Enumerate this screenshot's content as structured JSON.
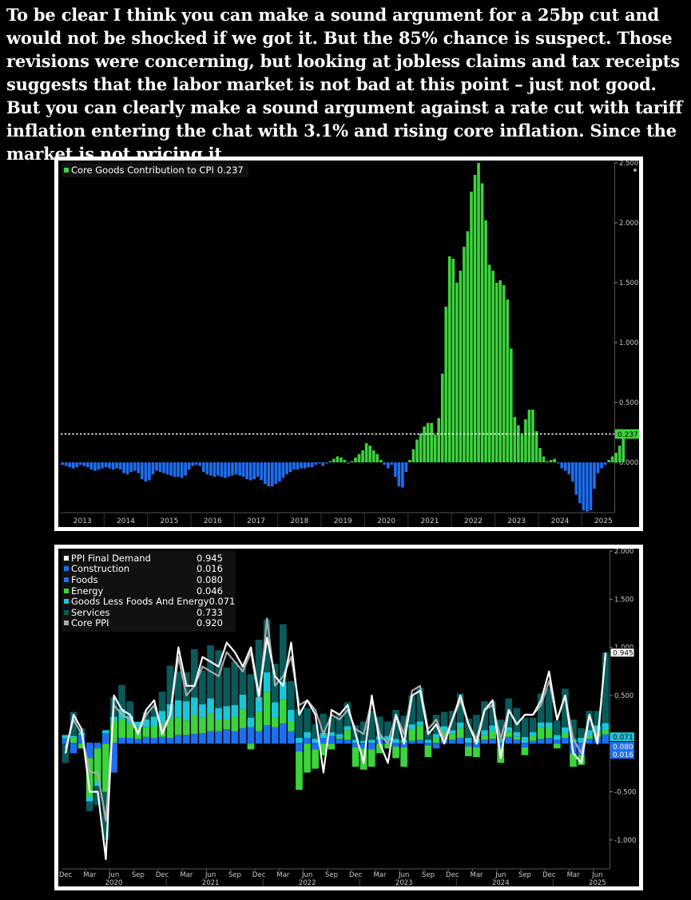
{
  "caption": "To be clear I think you can make a sound argument for a 25bp cut and would not be shocked if we got it. But the 85% chance is suspect. Those revisions were concerning, but looking at jobless claims and tax receipts suggests that the labor market is not bad at this point – just not good. But you can clearly make a sound argument against a rate cut with tariff inflation entering the chat with 3.1% and rising core inflation. Since the market is not pricing it…",
  "chart_data": [
    {
      "type": "bar",
      "legend": [
        {
          "name": "Core Goods Contribution to CPI",
          "value": "0.237",
          "color": "#3cd33c"
        }
      ],
      "last_value_label": "0.237",
      "reference_line": 0.237,
      "ylim": [
        -0.42,
        2.5
      ],
      "yticks": [
        "2.500",
        "2.000",
        "1.500",
        "1.000",
        "0.500",
        "0.000"
      ],
      "xticks": [
        "2013",
        "2014",
        "2015",
        "2016",
        "2017",
        "2018",
        "2019",
        "2020",
        "2021",
        "2022",
        "2023",
        "2024",
        "2025"
      ],
      "x_start": "2013-01",
      "positive_color": "#3cd33c",
      "negative_color": "#1e6ef0",
      "values": [
        -0.02,
        -0.03,
        -0.04,
        -0.05,
        -0.04,
        -0.02,
        -0.03,
        -0.04,
        -0.06,
        -0.07,
        -0.06,
        -0.05,
        -0.04,
        -0.05,
        -0.06,
        -0.05,
        -0.06,
        -0.09,
        -0.1,
        -0.08,
        -0.07,
        -0.09,
        -0.14,
        -0.16,
        -0.15,
        -0.1,
        -0.07,
        -0.08,
        -0.09,
        -0.1,
        -0.11,
        -0.12,
        -0.12,
        -0.13,
        -0.11,
        -0.06,
        -0.03,
        -0.02,
        -0.03,
        -0.08,
        -0.1,
        -0.11,
        -0.12,
        -0.11,
        -0.12,
        -0.13,
        -0.12,
        -0.11,
        -0.1,
        -0.11,
        -0.12,
        -0.14,
        -0.15,
        -0.14,
        -0.12,
        -0.15,
        -0.18,
        -0.2,
        -0.2,
        -0.18,
        -0.16,
        -0.13,
        -0.1,
        -0.08,
        -0.06,
        -0.06,
        -0.05,
        -0.05,
        -0.04,
        -0.04,
        -0.02,
        -0.01,
        -0.03,
        -0.01,
        0.01,
        0.03,
        0.05,
        0.04,
        0.02,
        -0.01,
        0.01,
        0.04,
        0.07,
        0.1,
        0.16,
        0.14,
        0.1,
        0.07,
        0.02,
        -0.02,
        -0.05,
        -0.02,
        -0.12,
        -0.2,
        -0.21,
        -0.08,
        0.02,
        0.11,
        0.19,
        0.24,
        0.3,
        0.33,
        0.33,
        0.23,
        0.37,
        0.74,
        1.3,
        1.72,
        1.7,
        1.5,
        1.6,
        1.8,
        1.93,
        2.26,
        2.4,
        2.5,
        2.33,
        2.02,
        1.65,
        1.6,
        1.5,
        1.52,
        1.48,
        1.36,
        0.95,
        0.38,
        0.31,
        0.23,
        0.36,
        0.44,
        0.44,
        0.26,
        0.12,
        0.05,
        0.01,
        0.02,
        0.03,
        -0.01,
        -0.05,
        -0.07,
        -0.1,
        -0.16,
        -0.27,
        -0.34,
        -0.4,
        -0.41,
        -0.4,
        -0.22,
        -0.09,
        -0.05,
        -0.02,
        0.02,
        0.05,
        0.08,
        0.14,
        0.237
      ]
    },
    {
      "type": "bar",
      "stacked": true,
      "ylim": [
        -1.3,
        2.0
      ],
      "yticks": [
        "2.000",
        "1.500",
        "1.000",
        "0.500",
        "-0.500",
        "-1.000"
      ],
      "x_start": "2019-12",
      "xtick_months": [
        "Dec",
        "Mar",
        "Jun",
        "Sep",
        "Dec",
        "Mar",
        "Jun",
        "Sep",
        "Dec",
        "Mar",
        "Jun",
        "Sep",
        "Dec",
        "Mar",
        "Jun",
        "Sep",
        "Dec",
        "Mar",
        "Jun",
        "Sep",
        "Dec",
        "Mar",
        "Jun"
      ],
      "xtick_years": [
        "2020",
        "2021",
        "2022",
        "2023",
        "2024",
        "2025"
      ],
      "right_labels": [
        {
          "text": "0.945",
          "value": 0.945,
          "bg": "#ffffff",
          "fg": "#000000"
        },
        {
          "text": "0.071",
          "value": 0.071,
          "bg": "#18c8d8",
          "fg": "#000000"
        },
        {
          "text": "0.080",
          "value": 0.08,
          "bg": "#1e6ef0",
          "fg": "#ffffff"
        },
        {
          "text": "0.016",
          "value": 0.016,
          "bg": "#1e6ef0",
          "fg": "#ffffff"
        }
      ],
      "legend": [
        {
          "name": "PPI Final Demand",
          "value": "0.945",
          "color": "#ffffff"
        },
        {
          "name": "Construction",
          "value": "0.016",
          "color": "#1e6ef0"
        },
        {
          "name": "Foods",
          "value": "0.080",
          "color": "#1e6ef0"
        },
        {
          "name": "Energy",
          "value": "0.046",
          "color": "#3cd33c"
        },
        {
          "name": "Goods Less Foods And Energy",
          "value": "0.071",
          "color": "#18c8d8"
        },
        {
          "name": "Services",
          "value": "0.733",
          "color": "#0a5a5a"
        },
        {
          "name": "Core PPI",
          "value": "0.920",
          "color": "#aaaaaa"
        }
      ],
      "series": [
        {
          "name": "Construction",
          "color": "#1e6ef0",
          "values": [
            0.01,
            0.01,
            0.01,
            0.01,
            0.01,
            0.01,
            0.01,
            0.01,
            0.01,
            0.01,
            0.01,
            0.01,
            0.01,
            0.01,
            0.01,
            0.01,
            0.01,
            0.01,
            0.01,
            0.01,
            0.01,
            0.01,
            0.01,
            0.01,
            0.01,
            0.01,
            0.01,
            0.01,
            0.01,
            0.01,
            0.01,
            0.01,
            0.01,
            0.01,
            0.01,
            0.01,
            0.01,
            0.01,
            0.01,
            0.01,
            0.01,
            0.01,
            0.01,
            0.01,
            0.01,
            0.01,
            0.01,
            0.01,
            0.01,
            0.01,
            0.01,
            0.01,
            0.01,
            0.01,
            0.01,
            0.01,
            0.01,
            0.01,
            0.01,
            0.01,
            0.01,
            0.01,
            0.01,
            0.01,
            0.01,
            0.01,
            0.01,
            0.016
          ]
        },
        {
          "name": "Foods",
          "color": "#1e6ef0",
          "values": [
            0.05,
            -0.1,
            0.08,
            -0.15,
            -0.05,
            0.1,
            -0.3,
            0.05,
            0.05,
            0.04,
            0.06,
            0.05,
            0.06,
            0.05,
            0.08,
            0.08,
            0.09,
            0.1,
            0.12,
            0.12,
            0.14,
            0.12,
            0.15,
            0.16,
            0.12,
            0.18,
            0.16,
            0.2,
            0.12,
            -0.08,
            0.05,
            -0.06,
            0.05,
            0.07,
            0.04,
            0.03,
            -0.04,
            -0.05,
            -0.06,
            0.03,
            0.02,
            -0.03,
            -0.04,
            0.02,
            0.03,
            -0.02,
            -0.05,
            0.04,
            0.03,
            0.05,
            -0.03,
            -0.04,
            0.03,
            0.04,
            -0.05,
            0.06,
            0.03,
            -0.04,
            0.02,
            0.04,
            0.05,
            0.03,
            0.05,
            -0.1,
            -0.12,
            0.04,
            0.06,
            0.08
          ]
        },
        {
          "name": "Energy",
          "color": "#3cd33c",
          "values": [
            0.0,
            0.05,
            -0.05,
            -0.4,
            -0.35,
            -0.5,
            0.22,
            0.2,
            0.15,
            0.12,
            0.1,
            0.12,
            0.15,
            0.2,
            0.18,
            0.15,
            0.2,
            0.16,
            0.18,
            0.12,
            0.1,
            0.15,
            0.2,
            -0.06,
            0.2,
            0.35,
            0.1,
            0.25,
            0.1,
            -0.4,
            -0.3,
            -0.2,
            -0.12,
            -0.06,
            0.02,
            0.1,
            -0.2,
            -0.22,
            -0.18,
            -0.1,
            -0.05,
            -0.12,
            -0.2,
            0.12,
            0.15,
            -0.12,
            0.05,
            0.08,
            0.06,
            0.1,
            -0.1,
            -0.1,
            0.05,
            0.08,
            -0.15,
            0.05,
            0.03,
            -0.08,
            0.05,
            0.12,
            0.1,
            -0.05,
            0.05,
            -0.14,
            -0.1,
            0.03,
            0.05,
            0.046
          ]
        },
        {
          "name": "Goods Less Foods And Energy",
          "color": "#18c8d8",
          "values": [
            0.03,
            0.02,
            0.02,
            -0.05,
            -0.04,
            0.03,
            0.05,
            0.1,
            0.08,
            0.06,
            0.08,
            0.1,
            0.12,
            0.15,
            0.18,
            0.2,
            0.18,
            0.14,
            0.16,
            0.12,
            0.14,
            0.12,
            0.15,
            0.1,
            0.15,
            0.2,
            0.16,
            0.18,
            0.12,
            0.05,
            0.06,
            0.04,
            0.05,
            0.04,
            0.03,
            0.04,
            0.03,
            0.02,
            0.03,
            0.04,
            0.05,
            0.04,
            0.03,
            0.05,
            0.04,
            0.03,
            0.04,
            0.05,
            0.04,
            0.06,
            0.05,
            0.04,
            0.05,
            0.06,
            0.04,
            0.05,
            0.05,
            0.06,
            0.04,
            0.05,
            0.06,
            0.05,
            0.06,
            0.04,
            0.05,
            0.06,
            0.07,
            0.071
          ]
        },
        {
          "name": "Services",
          "color": "#0a5a5a",
          "values": [
            -0.2,
            0.25,
            0.05,
            -0.1,
            -0.2,
            -0.5,
            0.2,
            0.25,
            0.15,
            0.0,
            0.08,
            0.1,
            0.2,
            0.4,
            0.3,
            0.3,
            0.5,
            0.35,
            0.55,
            0.6,
            0.4,
            0.45,
            0.3,
            0.45,
            0.6,
            0.55,
            0.4,
            0.6,
            0.3,
            0.3,
            0.25,
            0.15,
            0.2,
            0.15,
            0.2,
            0.25,
            0.15,
            0.2,
            0.3,
            0.2,
            0.15,
            0.3,
            0.25,
            0.3,
            0.35,
            0.1,
            0.2,
            0.15,
            0.2,
            0.3,
            0.2,
            0.25,
            0.3,
            0.25,
            0.2,
            0.3,
            0.25,
            0.2,
            0.15,
            0.3,
            0.35,
            0.15,
            0.4,
            0.2,
            0.1,
            0.2,
            0.15,
            0.733
          ]
        }
      ],
      "lines": [
        {
          "name": "PPI Final Demand",
          "color": "#ffffff",
          "values": [
            -0.1,
            0.3,
            0.15,
            -0.5,
            -0.5,
            -1.2,
            0.5,
            0.35,
            0.3,
            0.1,
            0.35,
            0.45,
            0.1,
            0.3,
            1.0,
            0.6,
            0.6,
            0.9,
            0.85,
            0.8,
            1.05,
            0.95,
            0.8,
            1.0,
            0.5,
            1.1,
            0.7,
            0.6,
            1.05,
            0.3,
            0.45,
            0.3,
            -0.3,
            0.35,
            0.3,
            0.4,
            0.1,
            -0.2,
            0.5,
            0.0,
            -0.2,
            0.3,
            0.0,
            0.5,
            0.55,
            0.1,
            0.2,
            0.0,
            0.25,
            0.5,
            0.2,
            0.0,
            0.35,
            0.45,
            -0.15,
            0.35,
            0.2,
            0.3,
            0.3,
            0.45,
            0.75,
            0.25,
            0.5,
            -0.1,
            -0.2,
            0.3,
            0.0,
            0.945
          ]
        },
        {
          "name": "Core PPI",
          "color": "#aaaaaa",
          "values": [
            -0.05,
            0.25,
            0.1,
            -0.3,
            -0.3,
            -0.8,
            0.4,
            0.3,
            0.25,
            0.1,
            0.3,
            0.4,
            0.15,
            0.3,
            0.9,
            0.5,
            0.6,
            0.8,
            0.75,
            0.7,
            0.95,
            0.85,
            0.75,
            0.95,
            0.45,
            1.3,
            0.6,
            0.7,
            0.9,
            0.4,
            0.45,
            0.35,
            0.1,
            0.3,
            0.25,
            0.35,
            0.15,
            0.1,
            0.45,
            0.1,
            0.0,
            0.3,
            0.1,
            0.55,
            0.6,
            0.15,
            0.25,
            0.05,
            0.25,
            0.45,
            0.2,
            0.05,
            0.35,
            0.4,
            0.05,
            0.35,
            0.2,
            0.3,
            0.3,
            0.4,
            0.65,
            0.25,
            0.5,
            0.05,
            -0.1,
            0.3,
            0.05,
            0.92
          ]
        }
      ]
    }
  ]
}
